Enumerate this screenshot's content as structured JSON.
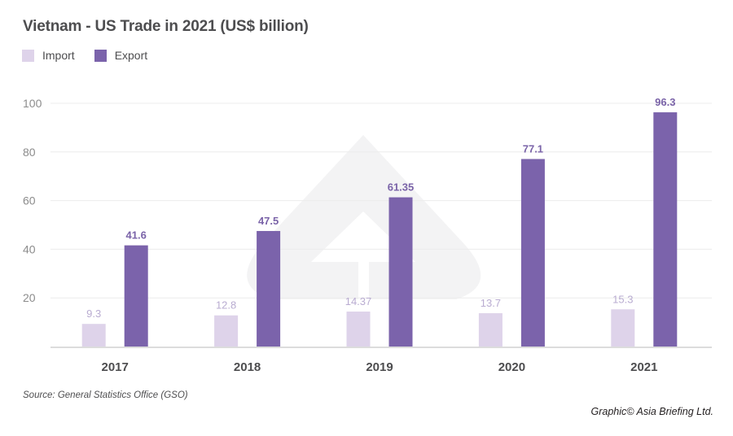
{
  "header": {
    "title": "Vietnam - US Trade in 2021 (US$ billion)"
  },
  "legend": [
    {
      "label": "Import",
      "color": "#ded3ea"
    },
    {
      "label": "Export",
      "color": "#7b63ab"
    }
  ],
  "footer": {
    "source": "Source: General Statistics Office (GSO)",
    "credit": "Graphic© Asia Briefing Ltd."
  },
  "colors": {
    "import": "#ded3ea",
    "export": "#7b63ab",
    "import_label": "#b9acd1",
    "export_label": "#7a63a8",
    "grid": "#ececec",
    "watermark": "#f3f3f4"
  },
  "chart_data": {
    "type": "bar",
    "title": "Vietnam - US Trade in 2021 (US$ billion)",
    "xlabel": "",
    "ylabel": "",
    "categories": [
      "2017",
      "2018",
      "2019",
      "2020",
      "2021"
    ],
    "series": [
      {
        "name": "Import",
        "values": [
          9.3,
          12.8,
          14.37,
          13.7,
          15.3
        ],
        "labels": [
          "9.3",
          "12.8",
          "14.37",
          "13.7",
          "15.3"
        ]
      },
      {
        "name": "Export",
        "values": [
          41.6,
          47.5,
          61.35,
          77.1,
          96.3
        ],
        "labels": [
          "41.6",
          "47.5",
          "61.35",
          "77.1",
          "96.3"
        ]
      }
    ],
    "ylim": [
      0,
      100
    ],
    "yticks": [
      20,
      40,
      60,
      80,
      100
    ],
    "grid": true,
    "legend_position": "top-left"
  }
}
